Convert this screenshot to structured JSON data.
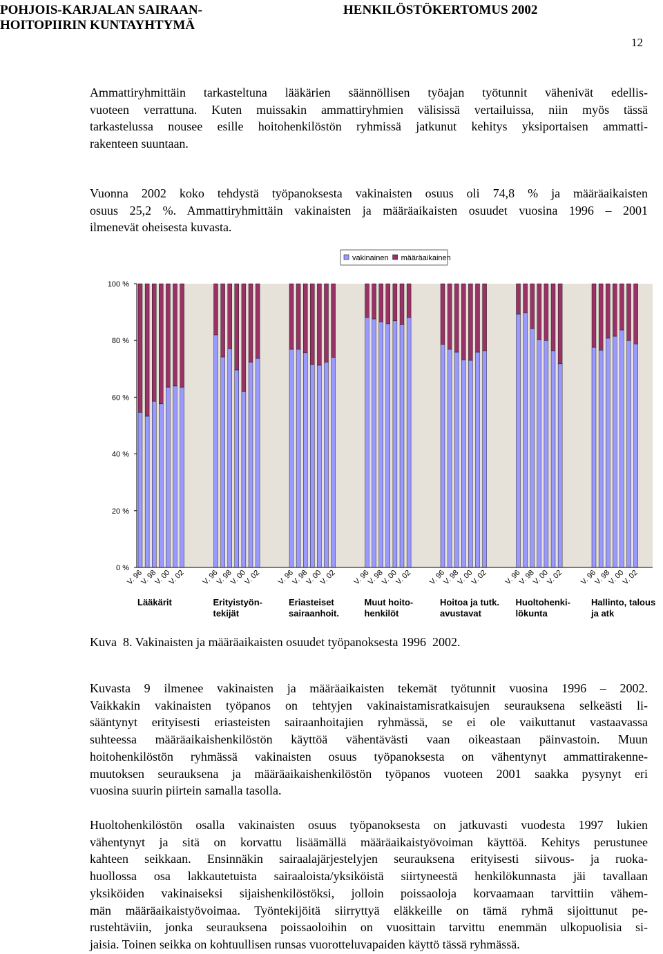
{
  "header": {
    "left": [
      "POHJOIS-KARJALAN SAIRAAN-",
      "HOITOPIIRIN KUNTAYHTYMÄ"
    ],
    "right": "HENKILÖSTÖKERTOMUS 2002",
    "page": "12"
  },
  "paragraphs_before": [
    [
      "Ammattiryhmittäin tarkasteltuna lääkärien säännöllisen työajan työtunnit vähenivät edellis-",
      "vuoteen verrattuna. Kuten muissakin ammattiryhmien välisissä vertailuissa, niin myös tässä",
      "tarkastelussa nousee esille hoitohenkilöstön ryhmissä jatkunut kehitys yksiportaisen ammatti-",
      "rakenteen suuntaan."
    ],
    [
      "Vuonna 2002 koko tehdystä työpanoksesta vakinaisten osuus oli 74,8 % ja määräaikaisten",
      "osuus 25,2 %. Ammattiryhmittäin vakinaisten ja määräaikaisten osuudet vuosina 1996 – 2001",
      "ilmenevät oheisesta kuvasta."
    ]
  ],
  "chart_data": {
    "type": "stacked_bar_100",
    "legend": "top",
    "categories": [
      "V. 96",
      null,
      "V. 98",
      null,
      "V. 00",
      null,
      "V. 02",
      "V. 96",
      null,
      "V. 98",
      null,
      "V. 00",
      null,
      "V. 02",
      "V. 96",
      null,
      "V. 98",
      null,
      "V. 00",
      null,
      "V. 02",
      "V. 96",
      null,
      "V. 98",
      null,
      "V. 00",
      null,
      "V. 02",
      "V. 96",
      null,
      "V. 98",
      null,
      "V. 00",
      null,
      "V. 02",
      "V. 96",
      null,
      "V. 98",
      null,
      "V. 00",
      null,
      "V. 02",
      "V. 96",
      null,
      "V. 98",
      null,
      "V. 00",
      null,
      "V. 02"
    ],
    "groups": [
      [
        "Lääkärit"
      ],
      [
        "Erityistyön-",
        "tekijät"
      ],
      [
        "Eriasteiset",
        "sairaanhoit."
      ],
      [
        "Muut hoito-",
        "henkilöt"
      ],
      [
        "Hoitoa ja tutk.",
        "avustavat"
      ],
      [
        "Huoltohenki-",
        "lökunta"
      ],
      [
        "Hallinto, talous",
        "ja atk"
      ]
    ],
    "series": [
      {
        "name": "vakinainen",
        "color": "#9999ff",
        "values": [
          54.7,
          53.3,
          58.6,
          57.7,
          63.5,
          64.0,
          63.5,
          82.0,
          74.2,
          77.1,
          69.6,
          62.0,
          72.3,
          73.7,
          76.9,
          76.9,
          75.7,
          71.5,
          71.3,
          72.3,
          74.0,
          88.1,
          87.6,
          86.6,
          85.9,
          86.9,
          85.6,
          88.1,
          78.6,
          76.9,
          75.9,
          73.2,
          73.0,
          75.9,
          76.4,
          89.3,
          89.8,
          84.2,
          80.3,
          80.0,
          76.4,
          71.8,
          77.6,
          76.6,
          80.8,
          81.5,
          83.7,
          80.0,
          78.8
        ]
      },
      {
        "name": "määräaikainen",
        "color": "#993366",
        "values": [
          45.3,
          46.7,
          41.4,
          42.3,
          36.5,
          36.0,
          36.5,
          18.0,
          25.8,
          22.9,
          30.4,
          38.0,
          27.7,
          26.3,
          23.1,
          23.1,
          24.3,
          28.5,
          28.7,
          27.7,
          26.0,
          11.9,
          12.4,
          13.4,
          14.1,
          13.1,
          14.4,
          11.9,
          21.4,
          23.1,
          24.1,
          26.8,
          27.0,
          24.1,
          23.6,
          10.7,
          10.2,
          15.8,
          19.7,
          20.0,
          23.6,
          28.2,
          22.4,
          23.4,
          19.2,
          18.5,
          16.3,
          20.0,
          21.2
        ]
      }
    ],
    "ylim": [
      0,
      100
    ],
    "yticks": [
      {
        "value": 0,
        "label": "0 %"
      },
      {
        "value": 20,
        "label": "20 %"
      },
      {
        "value": 40,
        "label": "40 %"
      },
      {
        "value": 60,
        "label": "60 %"
      },
      {
        "value": 80,
        "label": "80 %"
      },
      {
        "value": 100,
        "label": "100 %"
      }
    ]
  },
  "caption": "Kuva  8. Vakinaisten ja määräaikaisten osuudet työpanoksesta 1996  2002.",
  "paragraphs_after": [
    [
      "Kuvasta 9 ilmenee vakinaisten ja määräaikaisten tekemät työtunnit vuosina 1996 – 2002.",
      "Vaikkakin vakinaisten työpanos on tehtyjen vakinaistamisratkaisujen seurauksena selkeästi li-",
      "sääntynyt erityisesti eriasteisten sairaanhoitajien ryhmässä, se ei ole vaikuttanut vastaavassa",
      "suhteessa määräaikaishenkilöstön käyttöä vähentävästi vaan oikeastaan päinvastoin. Muun",
      "hoitohenkilöstön ryhmässä vakinaisten osuus työpanoksesta on vähentynyt ammattirakenne-",
      "muutoksen seurauksena ja määräaikaishenkilöstön työpanos vuoteen 2001 saakka pysynyt eri",
      "vuosina suurin piirtein samalla tasolla."
    ],
    [
      "Huoltohenkilöstön osalla vakinaisten osuus työpanoksesta on jatkuvasti vuodesta 1997 lukien",
      "vähentynyt ja sitä on korvattu lisäämällä määräaikaistyövoiman käyttöä. Kehitys perustunee",
      "kahteen seikkaan. Ensinnäkin sairaalajärjestelyjen seurauksena erityisesti siivous- ja ruoka-",
      "huollossa osa lakkautetuista sairaaloista/yksiköistä siirtyneestä henkilökunnasta jäi tavallaan",
      "yksiköiden vakinaiseksi sijaishenkilöstöksi, jolloin poissaoloja korvaamaan tarvittiin vähem-",
      "män määräaikaistyövoimaa. Työntekijöitä siirryttyä eläkkeille on tämä ryhmä sijoittunut pe-",
      "rustehtäviin, jonka seurauksena poissaoloihin on vuosittain tarvittu enemmän ulkopuolisia si-",
      "jaisia. Toinen seikka on kohtuullisen runsas vuorotteluvapaiden käyttö tässä ryhmässä."
    ]
  ]
}
